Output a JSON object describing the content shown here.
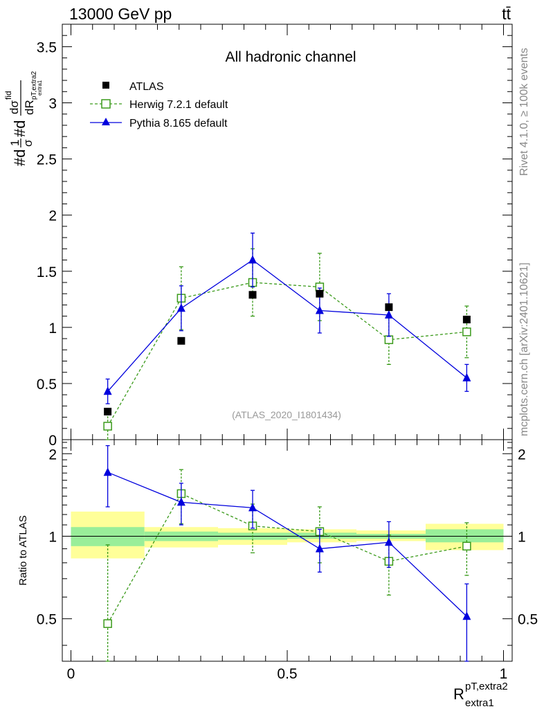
{
  "header": {
    "energy_label": "13000 GeV pp",
    "process_label": "tt̄"
  },
  "side_texts": {
    "rivet": "Rivet 4.1.0, ≥ 100k events",
    "mcplots": "mcplots.cern.ch [arXiv:2401.10621]"
  },
  "chart_data": [
    {
      "type": "scatter",
      "panel": "main",
      "title": "All hadronic channel",
      "watermark": "(ATLAS_2020_I1801434)",
      "ylabel_parts": {
        "hash1": "#d",
        "one": "1",
        "sigma": "σ",
        "hash2": "#d",
        "dsigma": "dσ",
        "fid": "fid",
        "subscript": "pT,extra2",
        "subsub": "extra1",
        "dR": "dR",
        "R": "R"
      },
      "xlim": [
        -0.02,
        1.02
      ],
      "ylim": [
        0,
        3.7
      ],
      "yticks": [
        0,
        0.5,
        1,
        1.5,
        2,
        2.5,
        3,
        3.5
      ],
      "ytick_labels": [
        "0",
        "0.5",
        "1",
        "1.5",
        "2",
        "2.5",
        "3",
        "3.5"
      ],
      "series": [
        {
          "name": "ATLAS",
          "marker": "filled-square",
          "color": "#000000",
          "x": [
            0.085,
            0.255,
            0.42,
            0.575,
            0.735,
            0.915
          ],
          "y": [
            0.25,
            0.88,
            1.29,
            1.3,
            1.18,
            1.07
          ]
        },
        {
          "name": "Herwig 7.2.1 default",
          "marker": "open-square",
          "line": "dashed",
          "color": "#3a9a1a",
          "x": [
            0.085,
            0.255,
            0.42,
            0.575,
            0.735,
            0.915
          ],
          "y": [
            0.12,
            1.26,
            1.4,
            1.36,
            0.89,
            0.96
          ],
          "err": [
            0.12,
            0.28,
            0.3,
            0.3,
            0.22,
            0.23
          ]
        },
        {
          "name": "Pythia 8.165 default",
          "marker": "filled-triangle",
          "line": "solid",
          "color": "#0000dd",
          "x": [
            0.085,
            0.255,
            0.42,
            0.575,
            0.735,
            0.915
          ],
          "y": [
            0.43,
            1.17,
            1.6,
            1.15,
            1.11,
            0.55
          ],
          "err": [
            0.11,
            0.2,
            0.24,
            0.2,
            0.19,
            0.12
          ]
        }
      ]
    },
    {
      "type": "scatter",
      "panel": "ratio",
      "ylabel": "Ratio to ATLAS",
      "xlabel_main": "R",
      "xlabel_sup": "pT,extra2",
      "xlabel_sub": "extra1",
      "xlim": [
        -0.02,
        1.02
      ],
      "ylim": [
        0.35,
        2.25
      ],
      "xticks": [
        0,
        0.5,
        1
      ],
      "xtick_labels": [
        "0",
        "0.5",
        "1"
      ],
      "yticks": [
        0.5,
        1,
        2
      ],
      "ytick_labels": [
        "0.5",
        "1",
        "2"
      ],
      "bands": [
        {
          "x0": 0.0,
          "x1": 0.17,
          "yellow": [
            0.83,
            1.23
          ],
          "green": [
            0.92,
            1.08
          ]
        },
        {
          "x0": 0.17,
          "x1": 0.34,
          "yellow": [
            0.91,
            1.08
          ],
          "green": [
            0.96,
            1.04
          ]
        },
        {
          "x0": 0.34,
          "x1": 0.5,
          "yellow": [
            0.93,
            1.07
          ],
          "green": [
            0.97,
            1.03
          ]
        },
        {
          "x0": 0.5,
          "x1": 0.66,
          "yellow": [
            0.95,
            1.06
          ],
          "green": [
            0.98,
            1.03
          ]
        },
        {
          "x0": 0.66,
          "x1": 0.82,
          "yellow": [
            0.96,
            1.05
          ],
          "green": [
            0.98,
            1.02
          ]
        },
        {
          "x0": 0.82,
          "x1": 1.0,
          "yellow": [
            0.89,
            1.11
          ],
          "green": [
            0.95,
            1.06
          ]
        }
      ],
      "series": [
        {
          "name": "Herwig 7.2.1 default",
          "marker": "open-square",
          "line": "dashed",
          "color": "#3a9a1a",
          "x": [
            0.085,
            0.255,
            0.42,
            0.575,
            0.735,
            0.915
          ],
          "y": [
            0.48,
            1.43,
            1.09,
            1.04,
            0.81,
            0.92
          ],
          "err": [
            0.45,
            0.32,
            0.22,
            0.24,
            0.2,
            0.2
          ]
        },
        {
          "name": "Pythia 8.165 default",
          "marker": "filled-triangle",
          "line": "solid",
          "color": "#0000dd",
          "x": [
            0.085,
            0.255,
            0.42,
            0.575,
            0.735,
            0.915
          ],
          "y": [
            1.71,
            1.33,
            1.27,
            0.9,
            0.95,
            0.51
          ],
          "err": [
            0.43,
            0.23,
            0.2,
            0.16,
            0.18,
            0.16
          ]
        }
      ]
    }
  ]
}
